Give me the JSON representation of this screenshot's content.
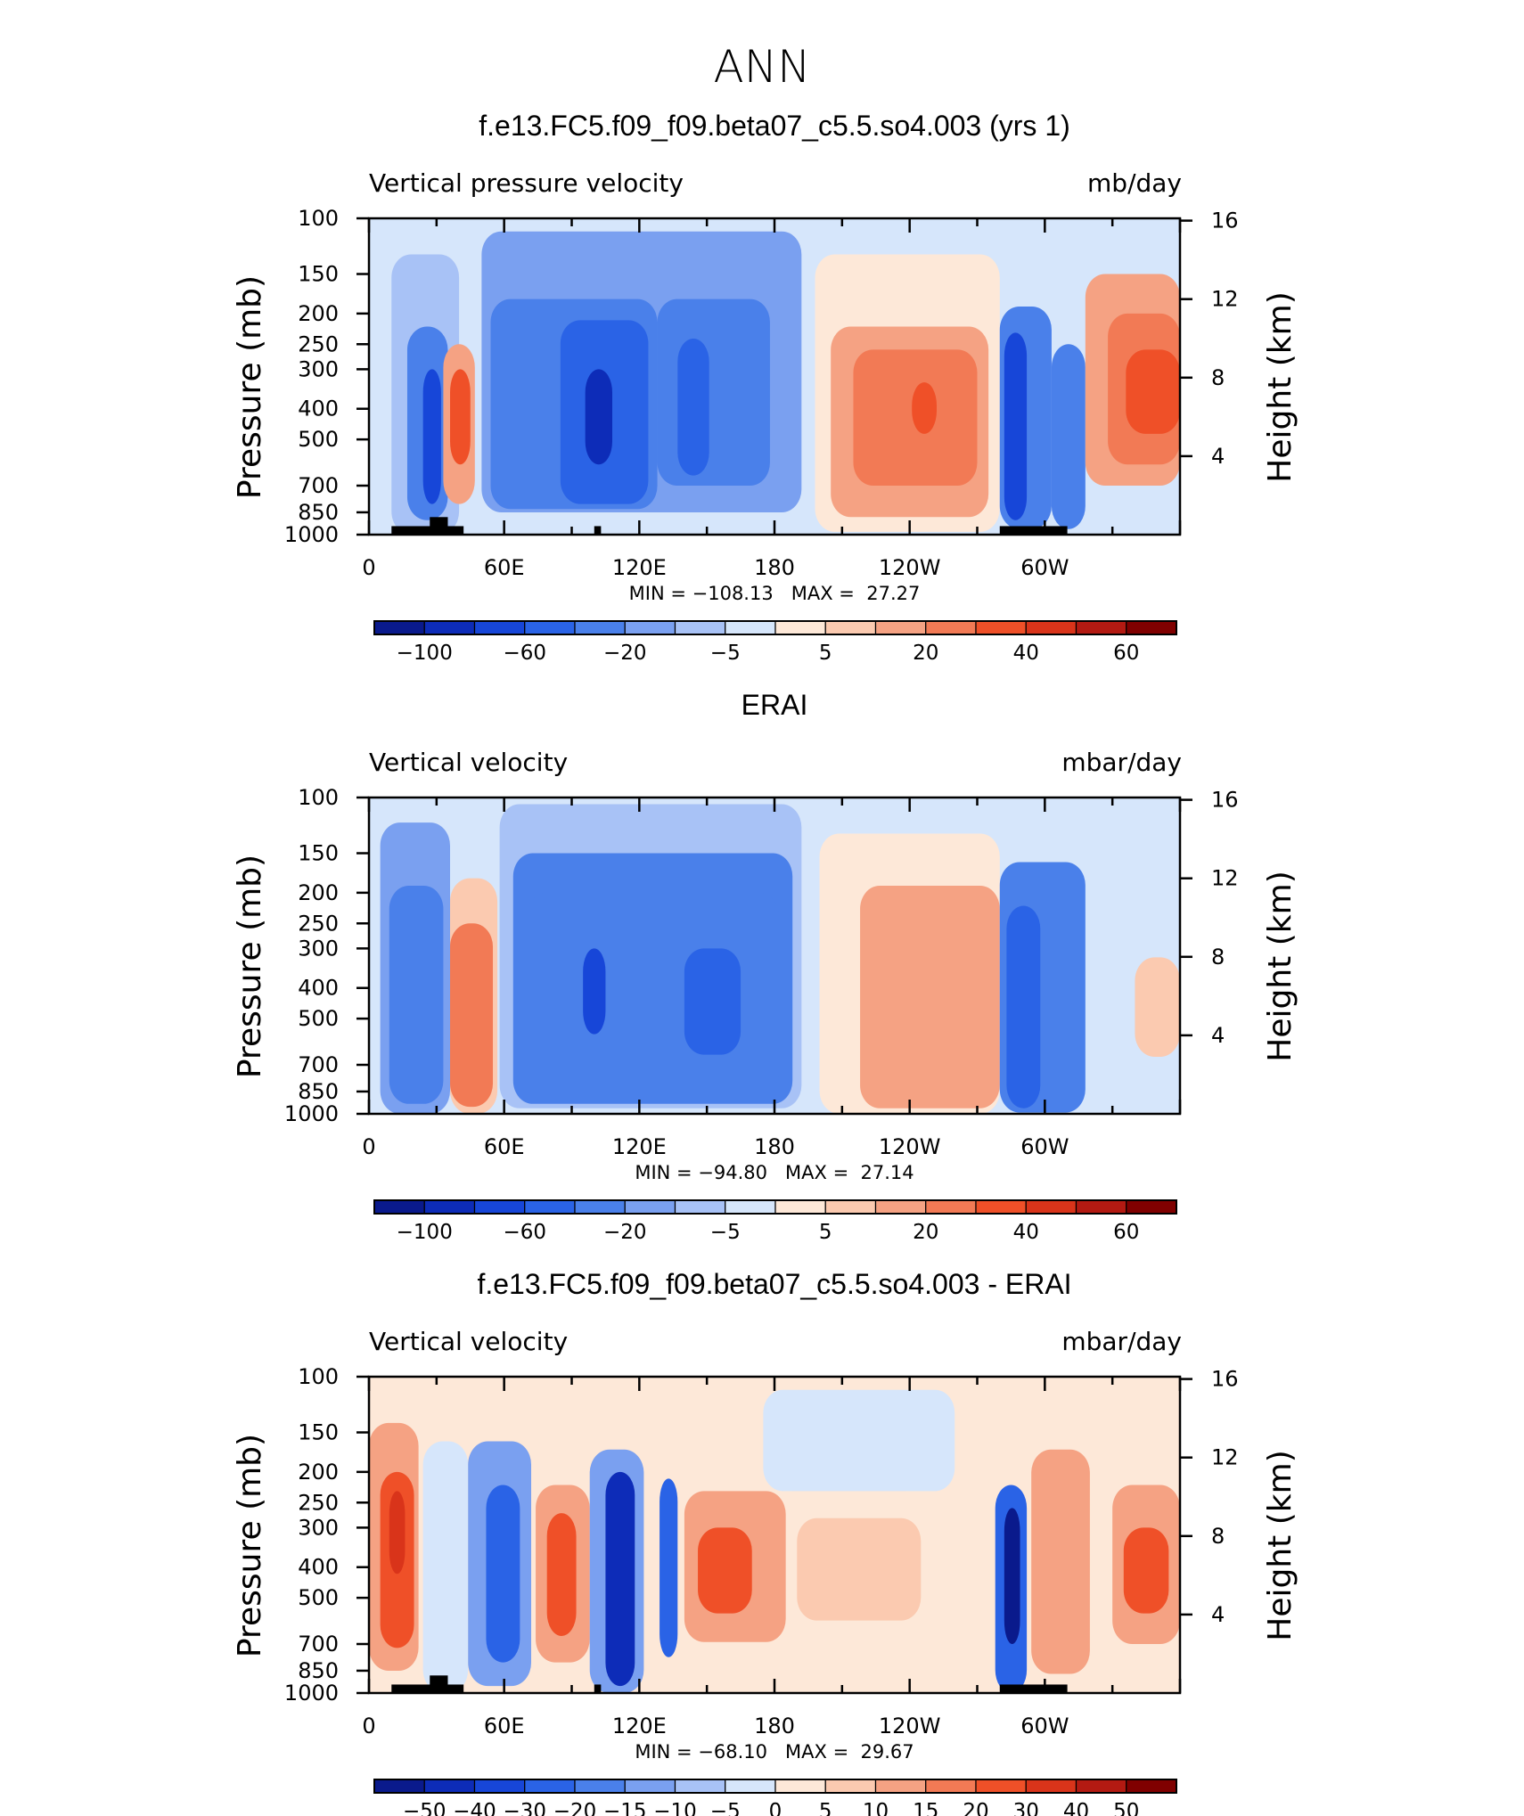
{
  "main_title": "ANN",
  "colors": {
    "main_scale": [
      "#0a1a8c",
      "#0d2cb8",
      "#1746d8",
      "#2a63e6",
      "#4a80ea",
      "#7aa0f0",
      "#a8c2f6",
      "#d6e6fb",
      "#fde8d8",
      "#fbcab0",
      "#f5a283",
      "#f27a55",
      "#ef5028",
      "#d9341a",
      "#b31a12",
      "#800000"
    ],
    "diff_scale": [
      "#0a1a8c",
      "#0d2cb8",
      "#1746d8",
      "#2a63e6",
      "#4a80ea",
      "#7aa0f0",
      "#a8c2f6",
      "#d6e6fb",
      "#fde8d8",
      "#fbcab0",
      "#f5a283",
      "#f27a55",
      "#ef5028",
      "#d9341a",
      "#b31a12",
      "#800000"
    ]
  },
  "chart_data": [
    {
      "type": "heatmap",
      "title": "f.e13.FC5.f09_f09.beta07_c5.5.so4.003 (yrs 1)",
      "left_label": "Vertical pressure velocity",
      "right_label": "mb/day",
      "ylabel": "Pressure (mb)",
      "y2label": "Height (km)",
      "x_ticks": [
        "0",
        "60E",
        "120E",
        "180",
        "120W",
        "60W"
      ],
      "x_tick_lon": [
        0,
        60,
        120,
        180,
        240,
        300
      ],
      "x_range": [
        0,
        360
      ],
      "y_ticks": [
        "100",
        "150",
        "200",
        "250",
        "300",
        "400",
        "500",
        "700",
        "850",
        "1000"
      ],
      "y_tick_p": [
        100,
        150,
        200,
        250,
        300,
        400,
        500,
        700,
        850,
        1000
      ],
      "y_range": [
        1000,
        100
      ],
      "y_log": true,
      "y2_ticks": [
        "16",
        "12",
        "8",
        "4"
      ],
      "y2_tick_km": [
        16,
        12,
        8,
        4
      ],
      "stats": "MIN = −108.13   MAX =  27.27",
      "colorbar_labels": [
        "−100",
        "−60",
        "−20",
        "−5",
        "5",
        "20",
        "40",
        "60"
      ],
      "levels": [
        -120,
        -100,
        -80,
        -60,
        -40,
        -20,
        -10,
        -5,
        0,
        5,
        10,
        20,
        30,
        40,
        50,
        60,
        70
      ],
      "regions": [
        {
          "lon": [
            10,
            40
          ],
          "p": [
            130,
            1000
          ],
          "v": -8
        },
        {
          "lon": [
            17,
            35
          ],
          "p": [
            220,
            900
          ],
          "v": -40
        },
        {
          "lon": [
            24,
            32
          ],
          "p": [
            300,
            800
          ],
          "v": -80
        },
        {
          "lon": [
            33,
            47
          ],
          "p": [
            250,
            800
          ],
          "v": 12
        },
        {
          "lon": [
            36,
            45
          ],
          "p": [
            300,
            600
          ],
          "v": 30
        },
        {
          "lon": [
            50,
            192
          ],
          "p": [
            110,
            850
          ],
          "v": -12
        },
        {
          "lon": [
            54,
            128
          ],
          "p": [
            180,
            830
          ],
          "v": -30
        },
        {
          "lon": [
            85,
            124
          ],
          "p": [
            210,
            800
          ],
          "v": -45
        },
        {
          "lon": [
            96,
            108
          ],
          "p": [
            300,
            600
          ],
          "v": -90
        },
        {
          "lon": [
            128,
            178
          ],
          "p": [
            180,
            700
          ],
          "v": -35
        },
        {
          "lon": [
            137,
            151
          ],
          "p": [
            240,
            650
          ],
          "v": -60
        },
        {
          "lon": [
            198,
            280
          ],
          "p": [
            130,
            980
          ],
          "v": 4
        },
        {
          "lon": [
            205,
            275
          ],
          "p": [
            220,
            880
          ],
          "v": 13
        },
        {
          "lon": [
            215,
            270
          ],
          "p": [
            260,
            700
          ],
          "v": 22
        },
        {
          "lon": [
            241,
            252
          ],
          "p": [
            330,
            480
          ],
          "v": 33
        },
        {
          "lon": [
            280,
            303
          ],
          "p": [
            190,
            960
          ],
          "v": -30
        },
        {
          "lon": [
            282,
            292
          ],
          "p": [
            230,
            900
          ],
          "v": -80
        },
        {
          "lon": [
            303,
            318
          ],
          "p": [
            250,
            960
          ],
          "v": -28
        },
        {
          "lon": [
            318,
            360
          ],
          "p": [
            150,
            700
          ],
          "v": 10
        },
        {
          "lon": [
            328,
            360
          ],
          "p": [
            200,
            600
          ],
          "v": 22
        },
        {
          "lon": [
            336,
            360
          ],
          "p": [
            260,
            480
          ],
          "v": 35
        }
      ],
      "land": [
        {
          "lon": [
            10,
            42
          ],
          "p": [
            940,
            1000
          ]
        },
        {
          "lon": [
            27,
            35
          ],
          "p": [
            880,
            1000
          ]
        },
        {
          "lon": [
            100,
            103
          ],
          "p": [
            940,
            1000
          ]
        },
        {
          "lon": [
            280,
            310
          ],
          "p": [
            940,
            1000
          ]
        }
      ]
    },
    {
      "type": "heatmap",
      "title": "ERAI",
      "left_label": "Vertical velocity",
      "right_label": "mbar/day",
      "ylabel": "Pressure (mb)",
      "y2label": "Height (km)",
      "x_ticks": [
        "0",
        "60E",
        "120E",
        "180",
        "120W",
        "60W"
      ],
      "x_tick_lon": [
        0,
        60,
        120,
        180,
        240,
        300
      ],
      "x_range": [
        0,
        360
      ],
      "y_ticks": [
        "100",
        "150",
        "200",
        "250",
        "300",
        "400",
        "500",
        "700",
        "850",
        "1000"
      ],
      "y_tick_p": [
        100,
        150,
        200,
        250,
        300,
        400,
        500,
        700,
        850,
        1000
      ],
      "y_range": [
        1000,
        100
      ],
      "y_log": true,
      "y2_ticks": [
        "16",
        "12",
        "8",
        "4"
      ],
      "y2_tick_km": [
        16,
        12,
        8,
        4
      ],
      "stats": "MIN = −94.80   MAX =  27.14",
      "colorbar_labels": [
        "−100",
        "−60",
        "−20",
        "−5",
        "5",
        "20",
        "40",
        "60"
      ],
      "levels": [
        -120,
        -100,
        -80,
        -60,
        -40,
        -20,
        -10,
        -5,
        0,
        5,
        10,
        20,
        30,
        40,
        50,
        60,
        70
      ],
      "regions": [
        {
          "lon": [
            5,
            36
          ],
          "p": [
            120,
            1000
          ],
          "v": -12
        },
        {
          "lon": [
            9,
            33
          ],
          "p": [
            190,
            930
          ],
          "v": -40
        },
        {
          "lon": [
            36,
            57
          ],
          "p": [
            180,
            1000
          ],
          "v": 8
        },
        {
          "lon": [
            36,
            55
          ],
          "p": [
            250,
            950
          ],
          "v": 20
        },
        {
          "lon": [
            58,
            192
          ],
          "p": [
            105,
            960
          ],
          "v": -8
        },
        {
          "lon": [
            64,
            188
          ],
          "p": [
            150,
            930
          ],
          "v": -22
        },
        {
          "lon": [
            70,
            182
          ],
          "p": [
            200,
            870
          ],
          "v": -40
        },
        {
          "lon": [
            95,
            105
          ],
          "p": [
            300,
            560
          ],
          "v": -70
        },
        {
          "lon": [
            140,
            165
          ],
          "p": [
            300,
            650
          ],
          "v": -60
        },
        {
          "lon": [
            200,
            280
          ],
          "p": [
            130,
            1000
          ],
          "v": 4
        },
        {
          "lon": [
            218,
            280
          ],
          "p": [
            190,
            960
          ],
          "v": 15
        },
        {
          "lon": [
            280,
            318
          ],
          "p": [
            160,
            990
          ],
          "v": -30
        },
        {
          "lon": [
            283,
            298
          ],
          "p": [
            220,
            960
          ],
          "v": -55
        },
        {
          "lon": [
            340,
            360
          ],
          "p": [
            320,
            660
          ],
          "v": 8
        }
      ],
      "land": []
    },
    {
      "type": "heatmap",
      "title": "f.e13.FC5.f09_f09.beta07_c5.5.so4.003 - ERAI",
      "left_label": "Vertical velocity",
      "right_label": "mbar/day",
      "ylabel": "Pressure (mb)",
      "y2label": "Height (km)",
      "x_ticks": [
        "0",
        "60E",
        "120E",
        "180",
        "120W",
        "60W"
      ],
      "x_tick_lon": [
        0,
        60,
        120,
        180,
        240,
        300
      ],
      "x_range": [
        0,
        360
      ],
      "y_ticks": [
        "100",
        "150",
        "200",
        "250",
        "300",
        "400",
        "500",
        "700",
        "850",
        "1000"
      ],
      "y_tick_p": [
        100,
        150,
        200,
        250,
        300,
        400,
        500,
        700,
        850,
        1000
      ],
      "y_range": [
        1000,
        100
      ],
      "y_log": true,
      "y2_ticks": [
        "16",
        "12",
        "8",
        "4"
      ],
      "y2_tick_km": [
        16,
        12,
        8,
        4
      ],
      "stats": "MIN = −68.10   MAX =  29.67",
      "colorbar_labels": [
        "−50",
        "−40",
        "−30",
        "−20",
        "−15",
        "−10",
        "−5",
        "0",
        "5",
        "10",
        "15",
        "20",
        "30",
        "40",
        "50"
      ],
      "levels": [
        -60,
        -50,
        -40,
        -30,
        -20,
        -15,
        -10,
        -5,
        0,
        5,
        10,
        15,
        20,
        30,
        40,
        50,
        60
      ],
      "regions": [
        {
          "lon": [
            0,
            360
          ],
          "p": [
            100,
            1000
          ],
          "v": 2
        },
        {
          "lon": [
            0,
            22
          ],
          "p": [
            140,
            850
          ],
          "v": 10
        },
        {
          "lon": [
            5,
            20
          ],
          "p": [
            200,
            720
          ],
          "v": 20
        },
        {
          "lon": [
            9,
            16
          ],
          "p": [
            230,
            420
          ],
          "v": 30
        },
        {
          "lon": [
            24,
            44
          ],
          "p": [
            160,
            1000
          ],
          "v": -3
        },
        {
          "lon": [
            44,
            72
          ],
          "p": [
            160,
            950
          ],
          "v": -15
        },
        {
          "lon": [
            52,
            67
          ],
          "p": [
            220,
            800
          ],
          "v": -30
        },
        {
          "lon": [
            74,
            98
          ],
          "p": [
            220,
            800
          ],
          "v": 12
        },
        {
          "lon": [
            79,
            92
          ],
          "p": [
            270,
            660
          ],
          "v": 20
        },
        {
          "lon": [
            98,
            122
          ],
          "p": [
            170,
            1000
          ],
          "v": -15
        },
        {
          "lon": [
            105,
            118
          ],
          "p": [
            200,
            950
          ],
          "v": -45
        },
        {
          "lon": [
            129,
            137
          ],
          "p": [
            210,
            770
          ],
          "v": -30
        },
        {
          "lon": [
            140,
            185
          ],
          "p": [
            230,
            690
          ],
          "v": 12
        },
        {
          "lon": [
            146,
            170
          ],
          "p": [
            300,
            560
          ],
          "v": 20
        },
        {
          "lon": [
            190,
            245
          ],
          "p": [
            280,
            590
          ],
          "v": 8
        },
        {
          "lon": [
            175,
            260
          ],
          "p": [
            110,
            230
          ],
          "v": -3
        },
        {
          "lon": [
            278,
            292
          ],
          "p": [
            220,
            1000
          ],
          "v": -30
        },
        {
          "lon": [
            282,
            289
          ],
          "p": [
            260,
            700
          ],
          "v": -55
        },
        {
          "lon": [
            294,
            320
          ],
          "p": [
            170,
            870
          ],
          "v": 10
        },
        {
          "lon": [
            330,
            360
          ],
          "p": [
            220,
            700
          ],
          "v": 12
        },
        {
          "lon": [
            335,
            355
          ],
          "p": [
            300,
            560
          ],
          "v": 22
        }
      ],
      "land": [
        {
          "lon": [
            10,
            42
          ],
          "p": [
            940,
            1000
          ]
        },
        {
          "lon": [
            27,
            35
          ],
          "p": [
            880,
            1000
          ]
        },
        {
          "lon": [
            100,
            103
          ],
          "p": [
            940,
            1000
          ]
        },
        {
          "lon": [
            280,
            310
          ],
          "p": [
            940,
            1000
          ]
        }
      ]
    }
  ]
}
